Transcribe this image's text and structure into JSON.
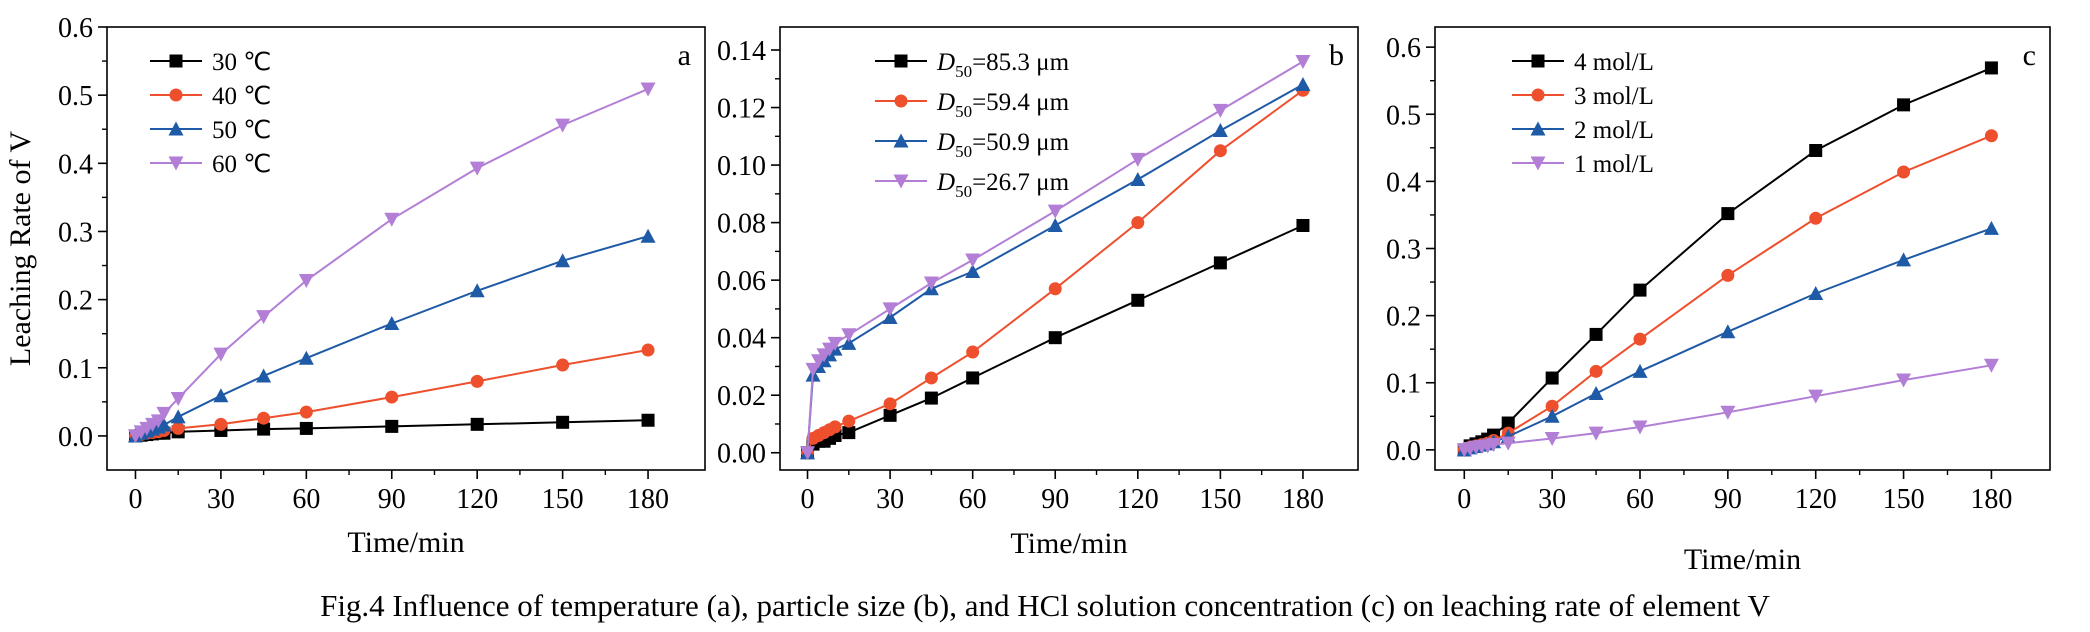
{
  "figure_caption": "Fig.4  Influence of temperature (a), particle size (b), and HCl solution concentration (c) on leaching rate of element V",
  "colors": {
    "black": "#000000",
    "red": "#ee4f2d",
    "blue": "#1f5aa6",
    "purple": "#b27ed6"
  },
  "chart_data": [
    {
      "type": "line",
      "panel_label": "a",
      "xlabel": "Time/min",
      "ylabel": "Leaching Rate of V",
      "xlim": [
        -10,
        200
      ],
      "ylim": [
        -0.05,
        0.6
      ],
      "xticks": [
        0,
        30,
        60,
        90,
        120,
        150,
        180
      ],
      "yticks": [
        0.0,
        0.1,
        0.2,
        0.3,
        0.4,
        0.5,
        0.6
      ],
      "ytick_labels": [
        "0.0",
        "0.1",
        "0.2",
        "0.3",
        "0.4",
        "0.5",
        "0.6"
      ],
      "legend_position": "top-left",
      "x": [
        0,
        2,
        4,
        6,
        8,
        10,
        15,
        30,
        45,
        60,
        90,
        120,
        150,
        180
      ],
      "series": [
        {
          "name": "30 ℃",
          "color": "#000000",
          "marker": "square",
          "values": [
            0.0,
            0.001,
            0.002,
            0.003,
            0.004,
            0.004,
            0.006,
            0.008,
            0.01,
            0.011,
            0.014,
            0.017,
            0.02,
            0.023
          ]
        },
        {
          "name": "40 ℃",
          "color": "#ee4f2d",
          "marker": "circle",
          "values": [
            0.0,
            0.002,
            0.004,
            0.005,
            0.006,
            0.008,
            0.011,
            0.017,
            0.026,
            0.035,
            0.057,
            0.08,
            0.104,
            0.126
          ]
        },
        {
          "name": "50 ℃",
          "color": "#1f5aa6",
          "marker": "triangle-up",
          "values": [
            0.0,
            0.004,
            0.007,
            0.01,
            0.013,
            0.016,
            0.028,
            0.059,
            0.088,
            0.114,
            0.165,
            0.213,
            0.257,
            0.293
          ]
        },
        {
          "name": "60 ℃",
          "color": "#b27ed6",
          "marker": "triangle-down",
          "values": [
            0.0,
            0.006,
            0.011,
            0.017,
            0.022,
            0.033,
            0.055,
            0.12,
            0.175,
            0.228,
            0.318,
            0.393,
            0.456,
            0.509
          ]
        }
      ]
    },
    {
      "type": "line",
      "panel_label": "b",
      "xlabel": "Time/min",
      "ylabel": "",
      "xlim": [
        -10,
        200
      ],
      "ylim": [
        -0.006,
        0.148
      ],
      "xticks": [
        0,
        30,
        60,
        90,
        120,
        150,
        180
      ],
      "yticks": [
        0.0,
        0.02,
        0.04,
        0.06,
        0.08,
        0.1,
        0.12,
        0.14
      ],
      "ytick_labels": [
        "0.00",
        "0.02",
        "0.04",
        "0.06",
        "0.08",
        "0.10",
        "0.12",
        "0.14"
      ],
      "legend_position": "top-left",
      "x": [
        0,
        2,
        4,
        6,
        8,
        10,
        15,
        30,
        45,
        60,
        90,
        120,
        150,
        180
      ],
      "series": [
        {
          "name_prefix": "D",
          "name_sub": "50",
          "name_suffix": "=85.3 μm",
          "color": "#000000",
          "marker": "square",
          "values": [
            0.0,
            0.003,
            0.004,
            0.004,
            0.005,
            0.006,
            0.007,
            0.013,
            0.019,
            0.026,
            0.04,
            0.053,
            0.066,
            0.079
          ]
        },
        {
          "name_prefix": "D",
          "name_sub": "50",
          "name_suffix": "=59.4 μm",
          "color": "#ee4f2d",
          "marker": "circle",
          "values": [
            0.0,
            0.005,
            0.006,
            0.007,
            0.008,
            0.009,
            0.011,
            0.017,
            0.026,
            0.035,
            0.057,
            0.08,
            0.105,
            0.126
          ]
        },
        {
          "name_prefix": "D",
          "name_sub": "50",
          "name_suffix": "=50.9 μm",
          "color": "#1f5aa6",
          "marker": "triangle-up",
          "values": [
            0.0,
            0.027,
            0.03,
            0.032,
            0.034,
            0.036,
            0.038,
            0.047,
            0.057,
            0.063,
            0.079,
            0.095,
            0.112,
            0.128
          ]
        },
        {
          "name_prefix": "D",
          "name_sub": "50",
          "name_suffix": "=26.7 μm",
          "color": "#b27ed6",
          "marker": "triangle-down",
          "values": [
            0.0,
            0.029,
            0.032,
            0.034,
            0.036,
            0.038,
            0.041,
            0.05,
            0.059,
            0.067,
            0.084,
            0.102,
            0.119,
            0.136
          ]
        }
      ]
    },
    {
      "type": "line",
      "panel_label": "c",
      "xlabel": "Time/min",
      "ylabel": "",
      "xlim": [
        -10,
        200
      ],
      "ylim": [
        -0.03,
        0.63
      ],
      "xticks": [
        0,
        30,
        60,
        90,
        120,
        150,
        180
      ],
      "yticks": [
        0.0,
        0.1,
        0.2,
        0.3,
        0.4,
        0.5,
        0.6
      ],
      "ytick_labels": [
        "0.0",
        "0.1",
        "0.2",
        "0.3",
        "0.4",
        "0.5",
        "0.6"
      ],
      "legend_position": "top-left",
      "x": [
        0,
        2,
        4,
        6,
        8,
        10,
        15,
        30,
        45,
        60,
        90,
        120,
        150,
        180
      ],
      "series": [
        {
          "name": "4 mol/L",
          "color": "#000000",
          "marker": "square",
          "values": [
            0.0,
            0.006,
            0.009,
            0.012,
            0.016,
            0.022,
            0.04,
            0.107,
            0.172,
            0.238,
            0.352,
            0.446,
            0.514,
            0.569
          ]
        },
        {
          "name": "3 mol/L",
          "color": "#ee4f2d",
          "marker": "circle",
          "values": [
            0.0,
            0.004,
            0.006,
            0.008,
            0.01,
            0.014,
            0.025,
            0.065,
            0.117,
            0.165,
            0.26,
            0.345,
            0.414,
            0.468
          ]
        },
        {
          "name": "2 mol/L",
          "color": "#1f5aa6",
          "marker": "triangle-up",
          "values": [
            0.0,
            0.003,
            0.005,
            0.007,
            0.009,
            0.012,
            0.02,
            0.05,
            0.084,
            0.117,
            0.176,
            0.233,
            0.283,
            0.33
          ]
        },
        {
          "name": "1 mol/L",
          "color": "#b27ed6",
          "marker": "triangle-down",
          "values": [
            0.0,
            0.002,
            0.004,
            0.005,
            0.006,
            0.008,
            0.01,
            0.017,
            0.025,
            0.034,
            0.056,
            0.08,
            0.104,
            0.126
          ]
        }
      ]
    }
  ]
}
